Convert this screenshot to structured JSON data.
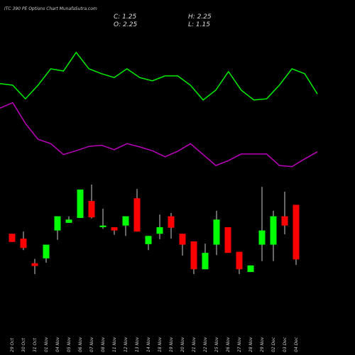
{
  "chart_data": {
    "type": "candlestick",
    "title": "ITC 390 PE Options  Chart MunafaSutra.com",
    "ohlc_labels": [
      "C: 1.25",
      "H: 2.25",
      "O: 2.25",
      "L: 1.15"
    ],
    "categories": [
      "29 Oct",
      "30 Oct",
      "31 Oct",
      "01 Nov",
      "04 Nov",
      "05 Nov",
      "06 Nov",
      "07 Nov",
      "08 Nov",
      "11 Nov",
      "12 Nov",
      "13 Nov",
      "14 Nov",
      "18 Nov",
      "19 Nov",
      "20 Nov",
      "21 Nov",
      "22 Nov",
      "25 Nov",
      "26 Nov",
      "27 Nov",
      "28 Nov",
      "29 Nov",
      "02 Dec",
      "03 Dec",
      "04 Dec"
    ],
    "open": [
      1.72,
      1.63,
      1.18,
      1.27,
      1.78,
      1.92,
      2.01,
      2.32,
      1.84,
      1.84,
      1.87,
      2.37,
      1.53,
      1.72,
      2.04,
      1.72,
      1.58,
      1.07,
      1.52,
      1.84,
      1.39,
      1.02,
      1.52,
      1.52,
      2.04,
      2.25
    ],
    "high": [
      1.72,
      1.76,
      1.26,
      1.52,
      2.04,
      2.04,
      2.53,
      2.62,
      2.18,
      1.84,
      2.04,
      2.54,
      1.68,
      2.07,
      2.1,
      1.72,
      1.58,
      1.54,
      2.14,
      1.84,
      1.39,
      1.14,
      2.58,
      2.14,
      2.49,
      2.25
    ],
    "low": [
      1.57,
      1.42,
      0.98,
      1.19,
      1.61,
      1.92,
      2.01,
      2.0,
      1.81,
      1.7,
      1.68,
      1.76,
      1.42,
      1.62,
      1.63,
      1.32,
      0.98,
      1.07,
      1.33,
      1.37,
      0.98,
      1.02,
      1.22,
      1.22,
      1.71,
      1.15
    ],
    "close": [
      1.57,
      1.46,
      1.13,
      1.52,
      2.04,
      1.98,
      2.53,
      2.02,
      1.87,
      1.78,
      2.04,
      1.76,
      1.68,
      1.84,
      1.83,
      1.52,
      1.07,
      1.37,
      1.98,
      1.37,
      1.07,
      1.14,
      1.78,
      2.04,
      1.87,
      1.25
    ],
    "up_color": "#00ff00",
    "down_color": "#ff0000",
    "series": [
      {
        "color": "#00ee00",
        "values": [
          4.47,
          4.44,
          4.19,
          4.44,
          4.74,
          4.7,
          5.04,
          4.74,
          4.65,
          4.58,
          4.74,
          4.58,
          4.52,
          4.61,
          4.61,
          4.44,
          4.17,
          4.35,
          4.69,
          4.35,
          4.17,
          4.19,
          4.44,
          4.74,
          4.65,
          4.28
        ]
      },
      {
        "color": "#bb00bb",
        "values": [
          4.02,
          4.12,
          3.74,
          3.45,
          3.37,
          3.17,
          3.24,
          3.32,
          3.34,
          3.26,
          3.37,
          3.31,
          3.24,
          3.13,
          3.23,
          3.37,
          3.17,
          2.97,
          3.06,
          3.18,
          3.18,
          3.18,
          2.97,
          2.95,
          3.09,
          3.22
        ]
      }
    ],
    "ylim": [
      -0.5,
      6.0
    ]
  }
}
